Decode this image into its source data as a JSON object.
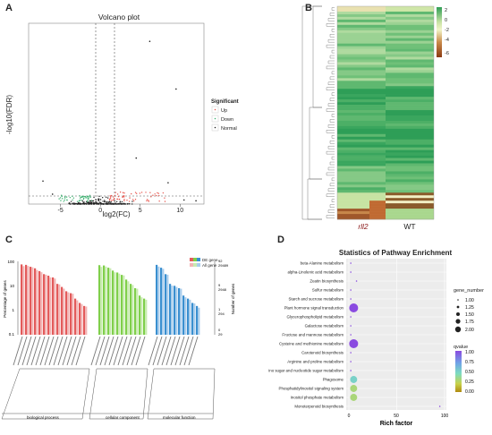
{
  "panels": {
    "a": "A",
    "b": "B",
    "c": "C",
    "d": "D"
  },
  "volcano": {
    "title": "Volcano plot",
    "xlabel": "log2(FC)",
    "ylabel": "-log10(FDR)",
    "x_ticks": [
      "-5",
      "0",
      "5",
      "10"
    ],
    "legend_title": "Significant",
    "legend": [
      "Up",
      "Down",
      "Normal"
    ],
    "colors": {
      "up": "#e8574f",
      "down": "#3cb371",
      "normal": "#222222"
    }
  },
  "heatmap": {
    "samples": [
      "rll2",
      "WT"
    ],
    "scale": [
      "2",
      "0",
      "-2",
      "-4",
      "-6"
    ],
    "colors": {
      "high": "#2f9e55",
      "mid": "#f1f5c8",
      "low": "#8b3a12"
    }
  },
  "go": {
    "legend": [
      "DE gene",
      "All gene"
    ],
    "ylabel_left": "Percentage of genes",
    "ylabel_right": "Number of genes",
    "left_ticks": [
      "100",
      "10",
      "1",
      "0.1"
    ],
    "right_ticks_de": [
      "92",
      "9",
      "1",
      "0"
    ],
    "right_ticks_all": [
      "29489",
      "2948",
      "294",
      "29"
    ],
    "categories": [
      "biological process",
      "cellular component",
      "molecular function"
    ],
    "colors": {
      "bp": "#e35a5a",
      "cc": "#7fcf4a",
      "mf": "#3a8fd0"
    }
  },
  "chart_data": [
    {
      "type": "scatter",
      "title": "Volcano plot",
      "xlabel": "log2(FC)",
      "ylabel": "-log10(FDR)",
      "xlim": [
        -9,
        13
      ],
      "ylim": [
        0,
        220
      ],
      "groups": [
        "Up",
        "Down",
        "Normal"
      ],
      "x_ticks": [
        -5,
        0,
        5,
        10
      ]
    },
    {
      "type": "heatmap",
      "samples": [
        "rll2",
        "WT"
      ],
      "scale": [
        2,
        0,
        -2,
        -4,
        -6
      ]
    },
    {
      "type": "bar",
      "series": [
        {
          "name": "DE gene"
        },
        {
          "name": "All gene"
        }
      ],
      "categories_groups": [
        "biological process",
        "cellular component",
        "molecular function"
      ],
      "yscale": "log",
      "ylim": [
        0.1,
        100
      ]
    },
    {
      "type": "scatter",
      "title": "Statistics of Pathway Enrichment",
      "xlabel": "Rich factor",
      "xlim": [
        0,
        100
      ],
      "x_ticks": [
        0,
        50,
        100
      ],
      "categories": [
        "beta-Alanine metabolism",
        "alpha-Linolenic acid metabolism",
        "Zeatin biosynthesis",
        "Sulfur metabolism",
        "Starch and sucrose metabolism",
        "Plant hormone signal transduction",
        "Glycerophospholipid metabolism",
        "Galactose metabolism",
        "Fructose and mannose metabolism",
        "Cysteine and methionine metabolism",
        "Carotenoid biosynthesis",
        "Arginine and proline metabolism",
        "Amino sugar and nucleotide sugar metabolism",
        "Phagosome",
        "Phosphatidylinositol signaling system",
        "Inositol phosphate metabolism",
        "Monoterpenoid biosynthesis"
      ],
      "rich_factor": [
        2,
        2,
        8,
        2,
        2,
        5,
        2,
        2,
        2,
        5,
        2,
        2,
        2,
        5,
        5,
        5,
        95
      ],
      "gene_number": [
        1,
        1,
        1,
        1,
        1,
        2,
        1,
        1,
        1,
        2,
        1,
        1,
        1,
        1.75,
        1.75,
        1.75,
        1
      ],
      "qvalue": [
        1.0,
        1.0,
        1.0,
        1.0,
        1.0,
        1.0,
        1.0,
        1.0,
        1.0,
        1.0,
        1.0,
        1.0,
        1.0,
        0.55,
        0.35,
        0.35,
        1.0
      ],
      "size_legend_title": "gene_number",
      "size_legend": [
        "1.00",
        "1.25",
        "1.50",
        "1.75",
        "2.00"
      ],
      "color_legend_title": "qvalue",
      "color_legend": [
        "1.00",
        "0.75",
        "0.50",
        "0.25",
        "0.00"
      ]
    }
  ],
  "enrichment": {
    "title": "Statistics of Pathway Enrichment",
    "xlabel": "Rich factor",
    "x_ticks": [
      "0",
      "50",
      "100"
    ],
    "size_title": "gene_number",
    "size_labels": [
      "1.00",
      "1.25",
      "1.50",
      "1.75",
      "2.00"
    ],
    "q_title": "qvalue",
    "q_labels": [
      "1.00",
      "0.75",
      "0.50",
      "0.25",
      "0.00"
    ]
  }
}
